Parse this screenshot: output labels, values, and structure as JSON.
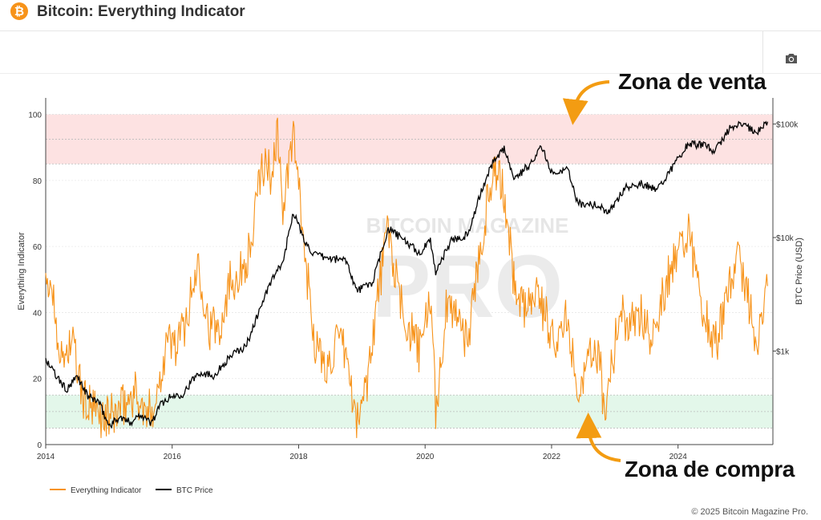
{
  "header": {
    "logo_glyph": "₿",
    "logo_icon": "bitcoin-logo-icon",
    "title": "Bitcoin: Everything Indicator"
  },
  "toolbar": {
    "camera_icon": "camera-icon"
  },
  "annotations": {
    "sell_zone": "Zona de venta",
    "buy_zone": "Zona de compra",
    "arrow_color": "#f39c12"
  },
  "watermark": {
    "line1": "BITCOIN MAGAZINE",
    "line2": "PRO"
  },
  "footer": {
    "copyright": "© 2025 Bitcoin Magazine Pro."
  },
  "colors": {
    "indicator": "#f7931a",
    "btc": "#000000",
    "sell_zone": "#fde2e2",
    "buy_zone": "#e3f7ea"
  },
  "chart_data": {
    "type": "line",
    "x_axis": {
      "ticks": [
        "2014",
        "2016",
        "2018",
        "2020",
        "2022",
        "2024"
      ],
      "range": [
        "2014-01",
        "2025-07"
      ]
    },
    "y_left": {
      "label": "Everything Indicator",
      "range": [
        0,
        105
      ],
      "ticks": [
        0,
        20,
        40,
        60,
        80,
        100
      ]
    },
    "y_right": {
      "label": "BTC Price (USD)",
      "scale": "log",
      "range": [
        150,
        170000
      ],
      "ticks": [
        "$1k",
        "$10k",
        "$100k"
      ],
      "tick_values": [
        1000,
        10000,
        100000
      ]
    },
    "zones": [
      {
        "name": "sell",
        "from": 85,
        "to": 100
      },
      {
        "name": "buy",
        "from": 5,
        "to": 15
      }
    ],
    "grid": true,
    "legend_position": "bottom-left",
    "legend": [
      "Everything Indicator",
      "BTC Price"
    ],
    "series": [
      {
        "name": "Everything Indicator",
        "axis": "left",
        "points": [
          [
            "2014-01",
            45
          ],
          [
            "2014-02",
            50
          ],
          [
            "2014-04",
            25
          ],
          [
            "2014-06",
            32
          ],
          [
            "2014-08",
            14
          ],
          [
            "2014-10",
            10
          ],
          [
            "2014-12",
            8
          ],
          [
            "2015-02",
            9
          ],
          [
            "2015-04",
            12
          ],
          [
            "2015-06",
            16
          ],
          [
            "2015-08",
            8
          ],
          [
            "2015-10",
            14
          ],
          [
            "2015-12",
            32
          ],
          [
            "2016-02",
            30
          ],
          [
            "2016-04",
            40
          ],
          [
            "2016-06",
            56
          ],
          [
            "2016-08",
            35
          ],
          [
            "2016-10",
            36
          ],
          [
            "2016-12",
            50
          ],
          [
            "2017-02",
            52
          ],
          [
            "2017-04",
            60
          ],
          [
            "2017-06",
            85
          ],
          [
            "2017-08",
            82
          ],
          [
            "2017-09",
            97
          ],
          [
            "2017-10",
            70
          ],
          [
            "2017-12",
            94
          ],
          [
            "2018-02",
            60
          ],
          [
            "2018-04",
            32
          ],
          [
            "2018-06",
            22
          ],
          [
            "2018-08",
            30
          ],
          [
            "2018-10",
            28
          ],
          [
            "2018-12",
            5
          ],
          [
            "2019-02",
            20
          ],
          [
            "2019-04",
            45
          ],
          [
            "2019-06",
            66
          ],
          [
            "2019-08",
            44
          ],
          [
            "2019-10",
            35
          ],
          [
            "2019-12",
            28
          ],
          [
            "2020-02",
            45
          ],
          [
            "2020-03",
            10
          ],
          [
            "2020-05",
            40
          ],
          [
            "2020-07",
            42
          ],
          [
            "2020-09",
            30
          ],
          [
            "2020-11",
            55
          ],
          [
            "2021-02",
            85
          ],
          [
            "2021-04",
            75
          ],
          [
            "2021-06",
            48
          ],
          [
            "2021-08",
            40
          ],
          [
            "2021-10",
            48
          ],
          [
            "2021-12",
            38
          ],
          [
            "2022-02",
            32
          ],
          [
            "2022-04",
            38
          ],
          [
            "2022-06",
            18
          ],
          [
            "2022-08",
            25
          ],
          [
            "2022-10",
            28
          ],
          [
            "2022-11",
            10
          ],
          [
            "2023-02",
            40
          ],
          [
            "2023-04",
            36
          ],
          [
            "2023-06",
            40
          ],
          [
            "2023-08",
            33
          ],
          [
            "2023-10",
            45
          ],
          [
            "2023-12",
            55
          ],
          [
            "2024-03",
            66
          ],
          [
            "2024-05",
            45
          ],
          [
            "2024-08",
            30
          ],
          [
            "2024-10",
            40
          ],
          [
            "2024-12",
            58
          ],
          [
            "2025-02",
            48
          ],
          [
            "2025-04",
            30
          ],
          [
            "2025-06",
            48
          ]
        ]
      },
      {
        "name": "BTC Price",
        "axis": "right",
        "points": [
          [
            "2014-01",
            850
          ],
          [
            "2014-03",
            600
          ],
          [
            "2014-05",
            450
          ],
          [
            "2014-07",
            600
          ],
          [
            "2014-09",
            400
          ],
          [
            "2014-11",
            360
          ],
          [
            "2015-01",
            220
          ],
          [
            "2015-03",
            260
          ],
          [
            "2015-05",
            235
          ],
          [
            "2015-07",
            280
          ],
          [
            "2015-09",
            230
          ],
          [
            "2015-11",
            350
          ],
          [
            "2016-01",
            400
          ],
          [
            "2016-03",
            420
          ],
          [
            "2016-06",
            650
          ],
          [
            "2016-09",
            610
          ],
          [
            "2016-12",
            900
          ],
          [
            "2017-03",
            1100
          ],
          [
            "2017-06",
            2600
          ],
          [
            "2017-08",
            4300
          ],
          [
            "2017-10",
            6000
          ],
          [
            "2017-12",
            17000
          ],
          [
            "2018-02",
            9500
          ],
          [
            "2018-04",
            7000
          ],
          [
            "2018-07",
            6500
          ],
          [
            "2018-10",
            6400
          ],
          [
            "2018-12",
            3400
          ],
          [
            "2019-03",
            4000
          ],
          [
            "2019-06",
            12000
          ],
          [
            "2019-09",
            9500
          ],
          [
            "2019-12",
            7200
          ],
          [
            "2020-02",
            9500
          ],
          [
            "2020-03",
            5000
          ],
          [
            "2020-06",
            9500
          ],
          [
            "2020-09",
            10500
          ],
          [
            "2020-12",
            28000
          ],
          [
            "2021-02",
            48000
          ],
          [
            "2021-04",
            60000
          ],
          [
            "2021-06",
            33000
          ],
          [
            "2021-09",
            45000
          ],
          [
            "2021-11",
            64000
          ],
          [
            "2022-01",
            38000
          ],
          [
            "2022-04",
            40000
          ],
          [
            "2022-06",
            20000
          ],
          [
            "2022-09",
            19500
          ],
          [
            "2022-12",
            16800
          ],
          [
            "2023-03",
            28000
          ],
          [
            "2023-06",
            30000
          ],
          [
            "2023-09",
            26500
          ],
          [
            "2023-12",
            42000
          ],
          [
            "2024-03",
            68000
          ],
          [
            "2024-06",
            64000
          ],
          [
            "2024-08",
            58000
          ],
          [
            "2024-11",
            95000
          ],
          [
            "2025-01",
            100000
          ],
          [
            "2025-04",
            84000
          ],
          [
            "2025-06",
            105000
          ]
        ]
      }
    ]
  }
}
